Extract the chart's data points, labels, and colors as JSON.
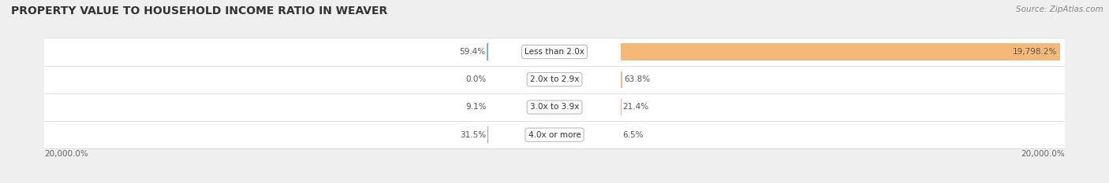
{
  "title": "PROPERTY VALUE TO HOUSEHOLD INCOME RATIO IN WEAVER",
  "source": "Source: ZipAtlas.com",
  "categories": [
    "Less than 2.0x",
    "2.0x to 2.9x",
    "3.0x to 3.9x",
    "4.0x or more"
  ],
  "without_mortgage": [
    59.4,
    0.0,
    9.1,
    31.5
  ],
  "with_mortgage": [
    19798.2,
    63.8,
    21.4,
    6.5
  ],
  "without_mortgage_label": [
    "59.4%",
    "0.0%",
    "9.1%",
    "31.5%"
  ],
  "with_mortgage_label": [
    "19,798.2%",
    "63.8%",
    "21.4%",
    "6.5%"
  ],
  "color_without": "#7bafd4",
  "color_with": "#f5b97a",
  "background_color": "#efefef",
  "row_color": "#ffffff",
  "xlim": 20000,
  "xlabel_left": "20,000.0%",
  "xlabel_right": "20,000.0%",
  "title_fontsize": 10,
  "source_fontsize": 7.5,
  "label_fontsize": 7.5,
  "category_fontsize": 7.5
}
